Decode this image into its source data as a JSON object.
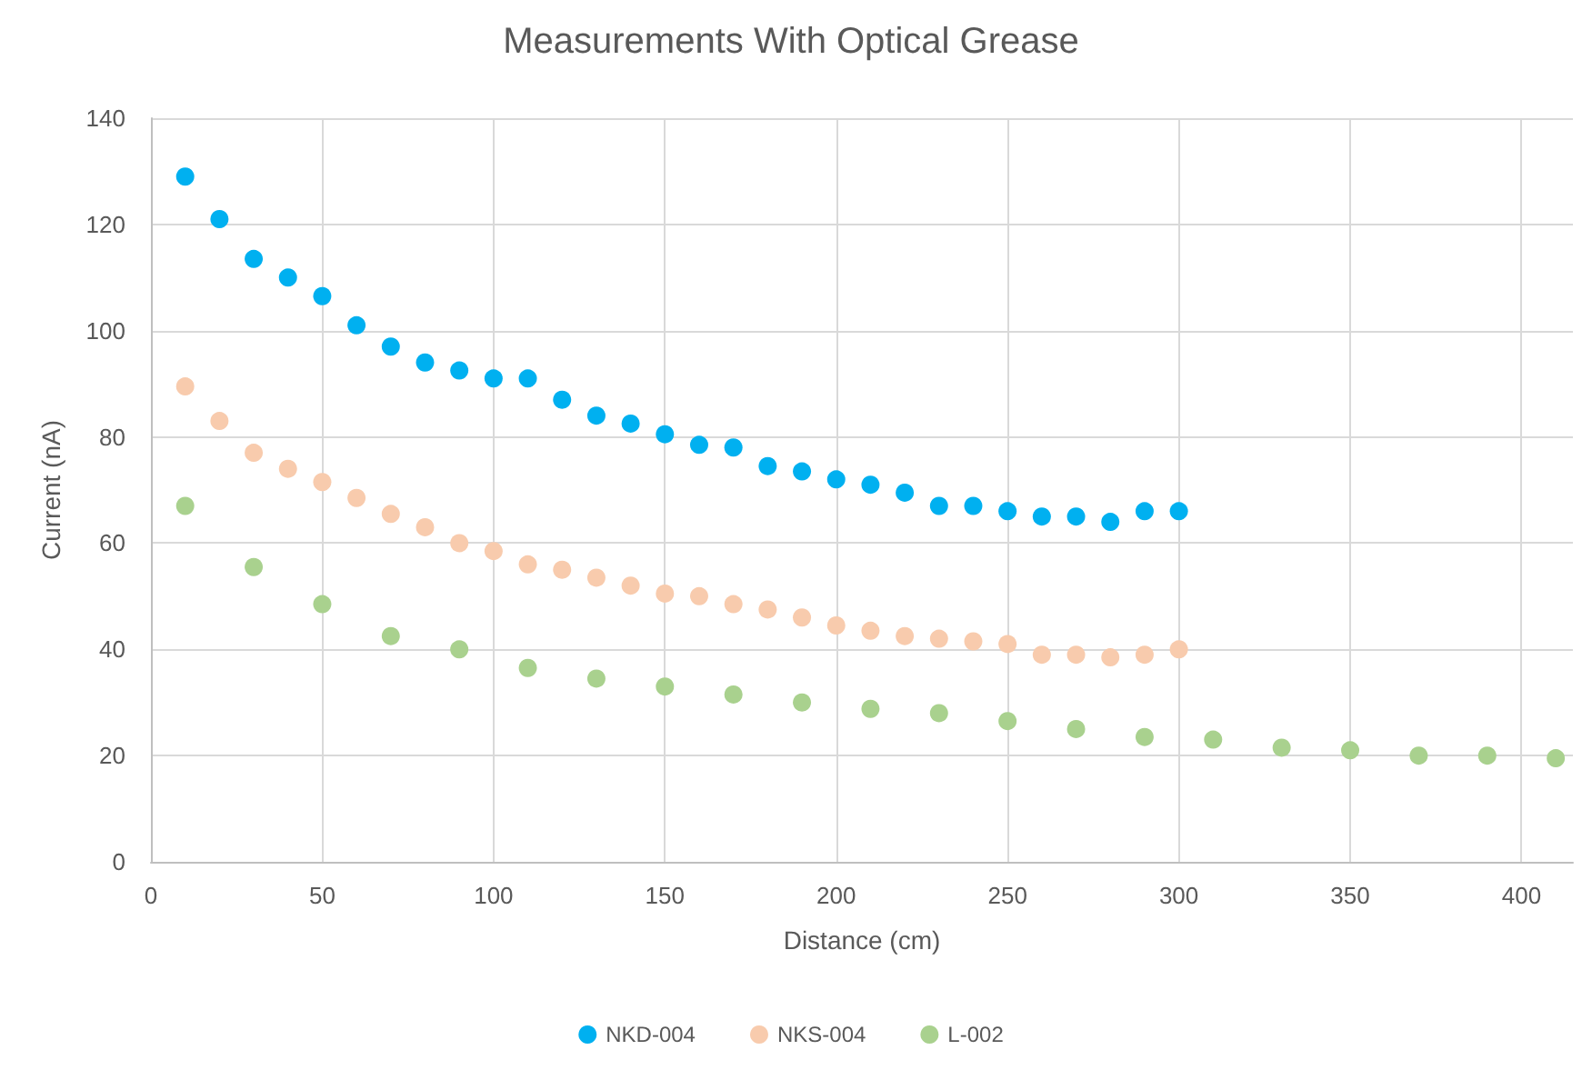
{
  "chart_data": {
    "type": "scatter",
    "title": "Measurements With Optical Grease",
    "xlabel": "Distance (cm)",
    "ylabel": "Current (nA)",
    "xlim": [
      0,
      415
    ],
    "xticks": [
      0,
      50,
      100,
      150,
      200,
      250,
      300,
      350,
      400
    ],
    "ylim": [
      0,
      140
    ],
    "yticks": [
      0,
      20,
      40,
      60,
      80,
      100,
      120,
      140
    ],
    "grid": true,
    "legend": "bottom",
    "marker": "circle",
    "series": [
      {
        "name": "NKD-004",
        "color": "#00b0f0",
        "x": [
          10,
          20,
          30,
          40,
          50,
          60,
          70,
          80,
          90,
          100,
          110,
          120,
          130,
          140,
          150,
          160,
          170,
          180,
          190,
          200,
          210,
          220,
          230,
          240,
          250,
          260,
          270,
          280,
          290,
          300
        ],
        "values": [
          129,
          121,
          113.5,
          110,
          106.5,
          101,
          97,
          94,
          92.5,
          91,
          91,
          87,
          84,
          82.5,
          80.5,
          78.5,
          78,
          74.5,
          73.5,
          72,
          71,
          69.5,
          67,
          67,
          66,
          65,
          65,
          64,
          66,
          66
        ]
      },
      {
        "name": "NKS-004",
        "color": "#f8cbad",
        "x": [
          10,
          20,
          30,
          40,
          50,
          60,
          70,
          80,
          90,
          100,
          110,
          120,
          130,
          140,
          150,
          160,
          170,
          180,
          190,
          200,
          210,
          220,
          230,
          240,
          250,
          260,
          270,
          280,
          290,
          300
        ],
        "values": [
          89.5,
          83,
          77,
          74,
          71.5,
          68.5,
          65.5,
          63,
          60,
          58.5,
          56,
          55,
          53.5,
          52,
          50.5,
          50,
          48.5,
          47.5,
          46,
          44.5,
          43.5,
          42.5,
          42,
          41.5,
          41,
          39,
          39,
          38.5,
          39,
          40
        ]
      },
      {
        "name": "L-002",
        "color": "#a9d18e",
        "x": [
          10,
          30,
          50,
          70,
          90,
          110,
          130,
          150,
          170,
          190,
          210,
          230,
          250,
          270,
          290,
          310,
          330,
          350,
          370,
          390,
          410
        ],
        "values": [
          67,
          55.5,
          48.5,
          42.5,
          40,
          36.5,
          34.5,
          33,
          31.5,
          30,
          28.8,
          28,
          26.5,
          25,
          23.5,
          23,
          21.5,
          21,
          20,
          20,
          19.5
        ]
      }
    ]
  }
}
